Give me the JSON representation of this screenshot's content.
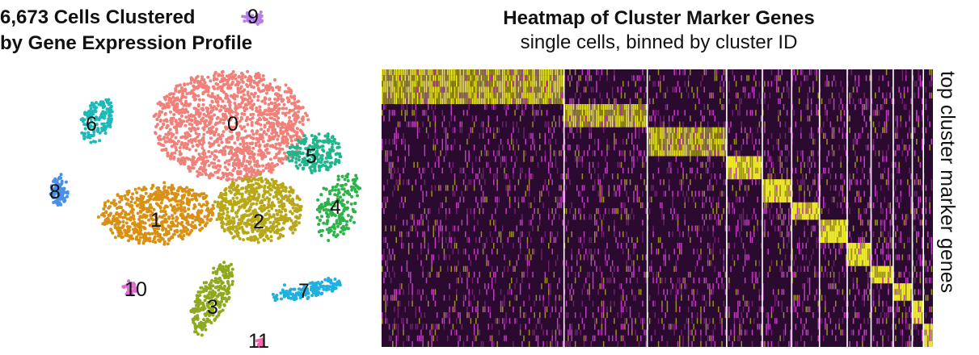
{
  "chart_data": [
    {
      "type": "scatter",
      "title_lines": [
        "6,673 Cells Clustered",
        "by Gene Expression Profile"
      ],
      "total_cells": 6673,
      "clusters": [
        {
          "id": "0",
          "color": "#F0807A"
        },
        {
          "id": "1",
          "color": "#D89015"
        },
        {
          "id": "2",
          "color": "#B8A818"
        },
        {
          "id": "3",
          "color": "#8DAA1F"
        },
        {
          "id": "4",
          "color": "#2DB34A"
        },
        {
          "id": "5",
          "color": "#20B58C"
        },
        {
          "id": "6",
          "color": "#1FB8B8"
        },
        {
          "id": "7",
          "color": "#1FB0E0"
        },
        {
          "id": "8",
          "color": "#4A8FE8"
        },
        {
          "id": "9",
          "color": "#B57EE8"
        },
        {
          "id": "10",
          "color": "#E06CD0"
        },
        {
          "id": "11",
          "color": "#F06AA8"
        }
      ]
    },
    {
      "type": "heatmap",
      "title": "Heatmap of Cluster Marker Genes",
      "subtitle": "single cells, binned by cluster ID",
      "ylabel": "top cluster marker genes",
      "column_groups": [
        "0",
        "1",
        "2",
        "3",
        "4",
        "5",
        "6",
        "7",
        "8",
        "9",
        "10",
        "11"
      ],
      "column_group_relative_widths": [
        230,
        105,
        100,
        45,
        37,
        35,
        35,
        30,
        28,
        24,
        14,
        12
      ],
      "colors": {
        "low": "#2a0a2e",
        "mid": "#c23bc3",
        "high": "#f2ef28"
      }
    }
  ]
}
